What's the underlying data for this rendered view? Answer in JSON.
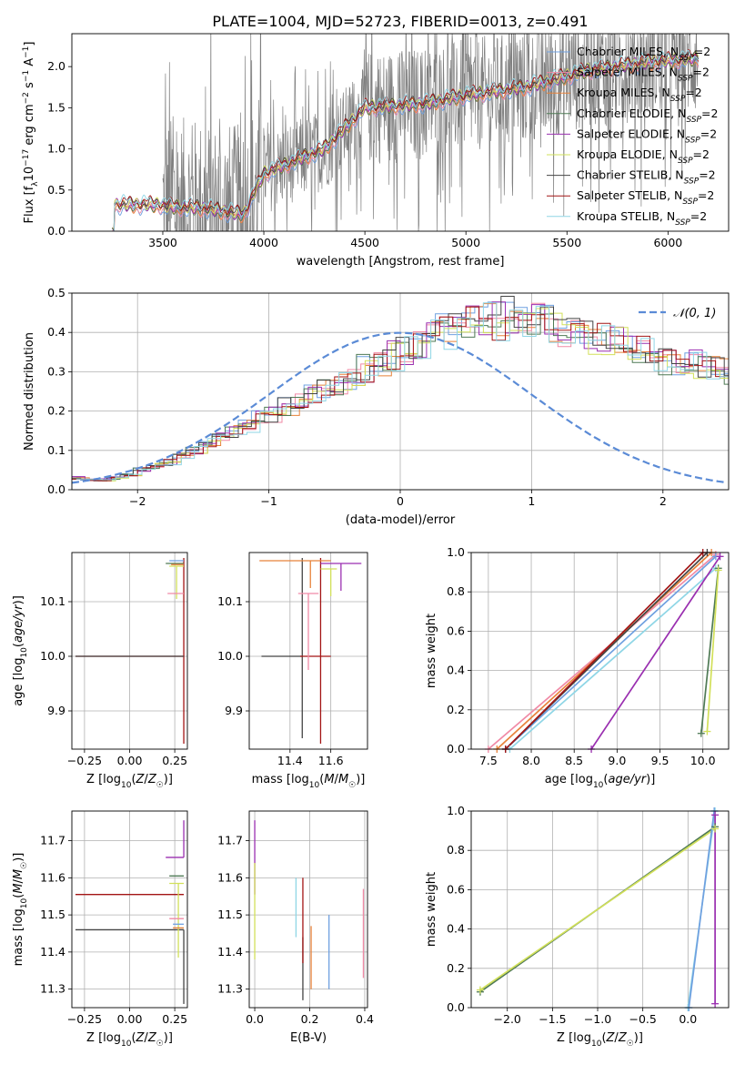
{
  "title": "PLATE=1004, MJD=52723, FIBERID=0013, z=0.491",
  "colors": {
    "Chabrier MILES": "#6fa0e0",
    "Salpeter MILES": "#f08aa6",
    "Kroupa MILES": "#e8823a",
    "Chabrier ELODIE": "#4f7a55",
    "Salpeter ELODIE": "#9a2fb0",
    "Kroupa ELODIE": "#d2e05a",
    "Chabrier STELIB": "#444444",
    "Salpeter STELIB": "#a31515",
    "Kroupa STELIB": "#8fd6e6",
    "data": "#808080",
    "gauss": "#5b8bd6"
  },
  "chart_data": [
    {
      "type": "line",
      "id": "spectrum",
      "xlabel": "wavelength [Angstrom, rest frame]",
      "ylabel": "Flux [f_λ 10^{-17} erg cm^{-2} s^{-1} A^{-1}]",
      "xlim": [
        3050,
        6300
      ],
      "ylim": [
        0,
        2.4
      ],
      "xticks": [
        3500,
        4000,
        4500,
        5000,
        5500,
        6000
      ],
      "yticks": [
        0.0,
        0.5,
        1.0,
        1.5,
        2.0
      ],
      "grid": false,
      "legend_placement": "top-right",
      "data_start_x": 3250,
      "data_end_x": 6150,
      "model_anchor_x": [
        3250,
        3300,
        3500,
        3700,
        3900,
        4000,
        4300,
        4500,
        4800,
        5000,
        5300,
        5600,
        5900,
        6150
      ],
      "model_anchor_y": [
        0.32,
        0.35,
        0.3,
        0.28,
        0.2,
        0.7,
        1.0,
        1.5,
        1.55,
        1.65,
        1.75,
        1.95,
        2.05,
        2.1
      ],
      "series": [
        {
          "name": "Chabrier MILES",
          "label_sub": "SSP",
          "label_suffix": "=2"
        },
        {
          "name": "Salpeter MILES",
          "label_sub": "SSP",
          "label_suffix": "=2"
        },
        {
          "name": "Kroupa MILES",
          "label_sub": "SSP",
          "label_suffix": "=2"
        },
        {
          "name": "Chabrier ELODIE",
          "label_sub": "SSP",
          "label_suffix": "=2"
        },
        {
          "name": "Salpeter ELODIE",
          "label_sub": "SSP",
          "label_suffix": "=2"
        },
        {
          "name": "Kroupa ELODIE",
          "label_sub": "SSP",
          "label_suffix": "=2"
        },
        {
          "name": "Chabrier STELIB",
          "label_sub": "SSP",
          "label_suffix": "=2"
        },
        {
          "name": "Salpeter STELIB",
          "label_sub": "SSP",
          "label_suffix": "=2"
        },
        {
          "name": "Kroupa STELIB",
          "label_sub": "SSP",
          "label_suffix": "=2"
        }
      ]
    },
    {
      "type": "bar",
      "id": "residual_hist",
      "xlabel": "(data-model)/error",
      "ylabel": "Normed distribution",
      "xlim": [
        -2.5,
        2.5
      ],
      "ylim": [
        0,
        0.5
      ],
      "xticks": [
        -2,
        -1,
        0,
        1,
        2
      ],
      "yticks": [
        0.0,
        0.1,
        0.2,
        0.3,
        0.4,
        0.5
      ],
      "grid": true,
      "legend_placement": "top-right",
      "gauss_label": "𝒩(0, 1)",
      "bin_width": 0.1,
      "bin_start": -2.5,
      "envelope": [
        0.03,
        0.025,
        0.025,
        0.03,
        0.04,
        0.05,
        0.06,
        0.07,
        0.09,
        0.1,
        0.12,
        0.13,
        0.15,
        0.16,
        0.18,
        0.19,
        0.21,
        0.22,
        0.24,
        0.25,
        0.27,
        0.29,
        0.31,
        0.32,
        0.34,
        0.36,
        0.37,
        0.39,
        0.4,
        0.41,
        0.42,
        0.43,
        0.43,
        0.44,
        0.44,
        0.43,
        0.42,
        0.41,
        0.4,
        0.39,
        0.38,
        0.37,
        0.36,
        0.35,
        0.34,
        0.33,
        0.33,
        0.32,
        0.31,
        0.3,
        0.29,
        0.28,
        0.27,
        0.26,
        0.24,
        0.22,
        0.21,
        0.19,
        0.18,
        0.16,
        0.15,
        0.14,
        0.12,
        0.11,
        0.1,
        0.09,
        0.08,
        0.07,
        0.06,
        0.05,
        0.045,
        0.04,
        0.035,
        0.03,
        0.03
      ]
    },
    {
      "type": "scatter",
      "id": "age_vs_Z",
      "xlabel": "Z [log10(Z/Z☉)]",
      "ylabel": "age [log10(age/yr)]",
      "xlim": [
        -0.32,
        0.32
      ],
      "ylim": [
        9.83,
        10.19
      ],
      "xticks": [
        -0.25,
        0.0,
        0.25
      ],
      "yticks": [
        9.9,
        10.0,
        10.1
      ],
      "grid": true,
      "points": [
        {
          "series": "Salpeter STELIB",
          "x": 0.3,
          "xerr": [
            0.6,
            0.0
          ],
          "y": 10.0,
          "yerr": [
            0.16,
            0.18
          ]
        },
        {
          "series": "Chabrier STELIB",
          "x": 0.3,
          "xerr": [
            0.6,
            0.0
          ],
          "y": 10.0,
          "yerr": [
            0.0,
            0.0
          ]
        },
        {
          "series": "Chabrier MILES",
          "x": 0.27,
          "xerr": [
            0.05,
            0.03
          ],
          "y": 10.175,
          "yerr": [
            0.0,
            0.0
          ]
        },
        {
          "series": "Kroupa ELODIE",
          "x": 0.26,
          "xerr": [
            0.04,
            0.04
          ],
          "y": 10.165,
          "yerr": [
            0.06,
            0.0
          ]
        },
        {
          "series": "Chabrier ELODIE",
          "x": 0.25,
          "xerr": [
            0.05,
            0.05
          ],
          "y": 10.17,
          "yerr": [
            0.0,
            0.0
          ]
        },
        {
          "series": "Salpeter MILES",
          "x": 0.27,
          "xerr": [
            0.06,
            0.03
          ],
          "y": 10.115,
          "yerr": [
            0.0,
            0.0
          ]
        },
        {
          "series": "Kroupa MILES",
          "x": 0.27,
          "xerr": [
            0.04,
            0.03
          ],
          "y": 10.168,
          "yerr": [
            0.0,
            0.0
          ]
        }
      ]
    },
    {
      "type": "scatter",
      "id": "age_vs_mass",
      "xlabel": "mass [log10(M/M☉)]",
      "ylabel": "",
      "xlim": [
        11.2,
        11.78
      ],
      "ylim": [
        9.83,
        10.19
      ],
      "xticks": [
        11.4,
        11.6
      ],
      "yticks": [
        9.9,
        10.0,
        10.1
      ],
      "grid": true,
      "points": [
        {
          "series": "Chabrier STELIB",
          "x": 11.46,
          "xerr": [
            0.2,
            0.0
          ],
          "y": 10.0,
          "yerr": [
            0.15,
            0.18
          ]
        },
        {
          "series": "Salpeter STELIB",
          "x": 11.55,
          "xerr": [
            0.1,
            0.05
          ],
          "y": 10.0,
          "yerr": [
            0.16,
            0.18
          ]
        },
        {
          "series": "Salpeter ELODIE",
          "x": 11.65,
          "xerr": [
            0.1,
            0.1
          ],
          "y": 10.17,
          "yerr": [
            0.05,
            0.0
          ]
        },
        {
          "series": "Kroupa MILES",
          "x": 11.5,
          "xerr": [
            0.25,
            0.1
          ],
          "y": 10.175,
          "yerr": [
            0.05,
            0.0
          ]
        },
        {
          "series": "Salpeter MILES",
          "x": 11.49,
          "xerr": [
            0.05,
            0.05
          ],
          "y": 10.115,
          "yerr": [
            0.14,
            0.0
          ]
        },
        {
          "series": "Kroupa ELODIE",
          "x": 11.6,
          "xerr": [
            0.05,
            0.03
          ],
          "y": 10.16,
          "yerr": [
            0.05,
            0.0
          ]
        }
      ]
    },
    {
      "type": "line",
      "id": "weight_vs_age",
      "xlabel": "age [log10(age/yr)]",
      "ylabel": "mass weight",
      "xlim": [
        7.3,
        10.3
      ],
      "ylim": [
        0,
        1.0
      ],
      "xticks": [
        7.5,
        8.0,
        8.5,
        9.0,
        9.5,
        10.0
      ],
      "yticks": [
        0.0,
        0.2,
        0.4,
        0.6,
        0.8,
        1.0
      ],
      "grid": true,
      "lines": [
        {
          "series": "Salpeter MILES",
          "x": [
            7.5,
            10.15
          ],
          "y": [
            0.0,
            0.99
          ]
        },
        {
          "series": "Kroupa STELIB",
          "x": [
            7.75,
            10.15
          ],
          "y": [
            0.0,
            0.92
          ]
        },
        {
          "series": "Chabrier MILES",
          "x": [
            7.7,
            10.15
          ],
          "y": [
            0.0,
            0.98
          ]
        },
        {
          "series": "Kroupa MILES",
          "x": [
            7.6,
            10.1
          ],
          "y": [
            0.0,
            1.0
          ]
        },
        {
          "series": "Chabrier STELIB",
          "x": [
            7.7,
            10.05
          ],
          "y": [
            0.0,
            1.0
          ]
        },
        {
          "series": "Salpeter STELIB",
          "x": [
            7.7,
            10.0
          ],
          "y": [
            0.0,
            1.0
          ]
        },
        {
          "series": "Salpeter ELODIE",
          "x": [
            8.7,
            10.2
          ],
          "y": [
            0.0,
            0.98
          ]
        },
        {
          "series": "Chabrier ELODIE",
          "x": [
            9.98,
            10.18
          ],
          "y": [
            0.08,
            0.92
          ]
        },
        {
          "series": "Kroupa ELODIE",
          "x": [
            10.05,
            10.18
          ],
          "y": [
            0.09,
            0.91
          ]
        }
      ]
    },
    {
      "type": "scatter",
      "id": "mass_vs_Z",
      "xlabel": "Z [log10(Z/Z☉)]",
      "ylabel": "mass [log10(M/M☉)]",
      "xlim": [
        -0.32,
        0.32
      ],
      "ylim": [
        11.25,
        11.78
      ],
      "xticks": [
        -0.25,
        0.0,
        0.25
      ],
      "yticks": [
        11.3,
        11.4,
        11.5,
        11.6,
        11.7
      ],
      "grid": true,
      "points": [
        {
          "series": "Salpeter STELIB",
          "x": 0.3,
          "xerr": [
            0.6,
            0.0
          ],
          "y": 11.555,
          "yerr": [
            0.0,
            0.0
          ]
        },
        {
          "series": "Chabrier STELIB",
          "x": 0.3,
          "xerr": [
            0.6,
            0.0
          ],
          "y": 11.46,
          "yerr": [
            0.2,
            0.0
          ]
        },
        {
          "series": "Salpeter ELODIE",
          "x": 0.3,
          "xerr": [
            0.1,
            0.0
          ],
          "y": 11.655,
          "yerr": [
            0.0,
            0.1
          ]
        },
        {
          "series": "Chabrier ELODIE",
          "x": 0.27,
          "xerr": [
            0.05,
            0.03
          ],
          "y": 11.605,
          "yerr": [
            0.0,
            0.0
          ]
        },
        {
          "series": "Kroupa ELODIE",
          "x": 0.27,
          "xerr": [
            0.05,
            0.03
          ],
          "y": 11.585,
          "yerr": [
            0.2,
            0.0
          ]
        },
        {
          "series": "Salpeter MILES",
          "x": 0.27,
          "xerr": [
            0.05,
            0.03
          ],
          "y": 11.49,
          "yerr": [
            0.0,
            0.0
          ]
        },
        {
          "series": "Chabrier MILES",
          "x": 0.28,
          "xerr": [
            0.04,
            0.02
          ],
          "y": 11.475,
          "yerr": [
            0.0,
            0.0
          ]
        },
        {
          "series": "Kroupa MILES",
          "x": 0.28,
          "xerr": [
            0.04,
            0.02
          ],
          "y": 11.465,
          "yerr": [
            0.0,
            0.0
          ]
        }
      ]
    },
    {
      "type": "scatter",
      "id": "mass_vs_EBV",
      "xlabel": "E(B-V)",
      "ylabel": "",
      "xlim": [
        -0.02,
        0.41
      ],
      "ylim": [
        11.25,
        11.78
      ],
      "xticks": [
        0.0,
        0.2,
        0.4
      ],
      "yticks": [
        11.3,
        11.4,
        11.5,
        11.6,
        11.7
      ],
      "grid": true,
      "points": [
        {
          "series": "Salpeter ELODIE",
          "x": 0.0,
          "y": 11.655,
          "yerr": [
            0.1,
            0.1
          ]
        },
        {
          "series": "Kroupa ELODIE",
          "x": 0.0,
          "y": 11.51,
          "yerr": [
            0.13,
            0.13
          ]
        },
        {
          "series": "Kroupa STELIB",
          "x": 0.15,
          "y": 11.52,
          "yerr": [
            0.08,
            0.08
          ]
        },
        {
          "series": "Chabrier STELIB",
          "x": 0.175,
          "y": 11.44,
          "yerr": [
            0.17,
            0.0
          ]
        },
        {
          "series": "Salpeter STELIB",
          "x": 0.175,
          "y": 11.49,
          "yerr": [
            0.12,
            0.11
          ]
        },
        {
          "series": "Kroupa MILES",
          "x": 0.205,
          "y": 11.385,
          "yerr": [
            0.085,
            0.085
          ]
        },
        {
          "series": "Chabrier MILES",
          "x": 0.27,
          "y": 11.4,
          "yerr": [
            0.1,
            0.1
          ]
        },
        {
          "series": "Salpeter MILES",
          "x": 0.395,
          "y": 11.45,
          "yerr": [
            0.12,
            0.12
          ]
        }
      ]
    },
    {
      "type": "line",
      "id": "weight_vs_Z",
      "xlabel": "Z [log10(Z/Z☉)]",
      "ylabel": "mass weight",
      "xlim": [
        -2.4,
        0.45
      ],
      "ylim": [
        0,
        1.0
      ],
      "xticks": [
        -2.0,
        -1.5,
        -1.0,
        -0.5,
        0.0
      ],
      "yticks": [
        0.0,
        0.2,
        0.4,
        0.6,
        0.8,
        1.0
      ],
      "grid": true,
      "lines": [
        {
          "series": "Chabrier ELODIE",
          "x": [
            -2.3,
            0.3
          ],
          "y": [
            0.08,
            0.92
          ]
        },
        {
          "series": "Kroupa ELODIE",
          "x": [
            -2.3,
            0.3
          ],
          "y": [
            0.09,
            0.91
          ]
        },
        {
          "series": "Kroupa STELIB",
          "x": [
            0.0,
            0.3
          ],
          "y": [
            0.0,
            1.0
          ]
        },
        {
          "series": "Chabrier MILES",
          "x": [
            0.01,
            0.29
          ],
          "y": [
            0.0,
            1.0
          ]
        },
        {
          "series": "Salpeter ELODIE",
          "x": [
            0.3,
            0.3
          ],
          "y": [
            0.02,
            0.98
          ]
        }
      ]
    }
  ]
}
